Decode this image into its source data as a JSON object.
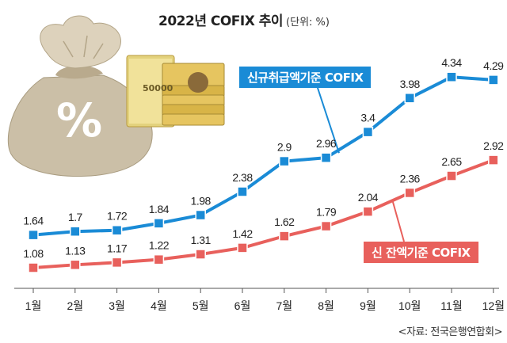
{
  "chart_data": {
    "type": "line",
    "title": "2022년 COFIX 추이",
    "unit": "(단위: %)",
    "categories": [
      "1월",
      "2월",
      "3월",
      "4월",
      "5월",
      "6월",
      "7월",
      "8월",
      "9월",
      "10월",
      "11월",
      "12월"
    ],
    "series": [
      {
        "name": "신규취급액기준 COFIX",
        "color": "#1a8bd6",
        "values": [
          1.64,
          1.7,
          1.72,
          1.84,
          1.98,
          2.38,
          2.9,
          2.96,
          3.4,
          3.98,
          4.34,
          4.29
        ],
        "labels": [
          "1.64",
          "1.7",
          "1.72",
          "1.84",
          "1.98",
          "2.38",
          "2.9",
          "2.96",
          "3.4",
          "3.98",
          "4.34",
          "4.29"
        ]
      },
      {
        "name": "신 잔액기준 COFIX",
        "color": "#e8605c",
        "values": [
          1.08,
          1.13,
          1.17,
          1.22,
          1.31,
          1.42,
          1.62,
          1.79,
          2.04,
          2.36,
          2.65,
          2.92
        ],
        "labels": [
          "1.08",
          "1.13",
          "1.17",
          "1.22",
          "1.31",
          "1.42",
          "1.62",
          "1.79",
          "2.04",
          "2.36",
          "2.65",
          "2.92"
        ]
      }
    ],
    "ylim": [
      0.85,
      4.6
    ],
    "grid": false,
    "source": "<자료: 전국은행연합회>"
  },
  "illustration": {
    "bag_symbol": "%",
    "banknote_value": "50000",
    "icons": [
      "money-bag-icon",
      "banknote-stack-icon"
    ]
  }
}
